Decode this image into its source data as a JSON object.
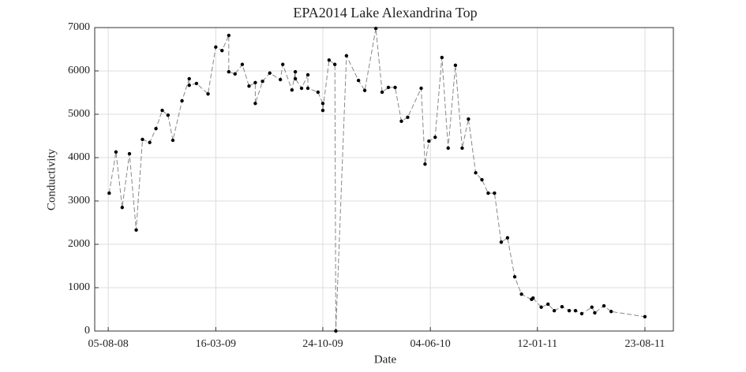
{
  "chart_data": {
    "type": "line",
    "title": "EPA2014 Lake Alexandrina Top",
    "xlabel": "Date",
    "ylabel": "Conductivity",
    "x": [
      "2008-08-07",
      "2008-08-21",
      "2008-09-03",
      "2008-09-18",
      "2008-10-02",
      "2008-10-15",
      "2008-10-30",
      "2008-11-12",
      "2008-11-25",
      "2008-12-07",
      "2008-12-17",
      "2009-01-05",
      "2009-01-20",
      "2009-01-20",
      "2009-02-04",
      "2009-02-28",
      "2009-03-16",
      "2009-03-29",
      "2009-04-12",
      "2009-04-12",
      "2009-04-25",
      "2009-05-10",
      "2009-05-24",
      "2009-06-06",
      "2009-06-06",
      "2009-06-21",
      "2009-07-06",
      "2009-07-28",
      "2009-08-02",
      "2009-08-21",
      "2009-08-28",
      "2009-08-28",
      "2009-09-10",
      "2009-09-23",
      "2009-09-23",
      "2009-10-14",
      "2009-10-24",
      "2009-10-24",
      "2009-11-06",
      "2009-11-18",
      "2009-11-20",
      "2009-12-12",
      "2010-01-06",
      "2010-01-19",
      "2010-02-11",
      "2010-02-24",
      "2010-03-09",
      "2010-03-23",
      "2010-04-05",
      "2010-04-18",
      "2010-05-16",
      "2010-05-24",
      "2010-06-01",
      "2010-06-14",
      "2010-06-28",
      "2010-07-11",
      "2010-07-26",
      "2010-08-09",
      "2010-08-22",
      "2010-09-06",
      "2010-09-19",
      "2010-10-02",
      "2010-10-15",
      "2010-10-29",
      "2010-11-11",
      "2010-11-26",
      "2010-12-10",
      "2010-12-31",
      "2011-01-03",
      "2011-01-20",
      "2011-02-03",
      "2011-02-16",
      "2011-03-04",
      "2011-03-19",
      "2011-04-01",
      "2011-04-14",
      "2011-05-05",
      "2011-05-11",
      "2011-05-30",
      "2011-06-14",
      "2011-08-23"
    ],
    "values": [
      3180,
      4130,
      2850,
      4090,
      2330,
      4420,
      4350,
      4670,
      5090,
      4980,
      4400,
      5310,
      5820,
      5670,
      5710,
      5470,
      6550,
      6470,
      6820,
      5980,
      5930,
      6150,
      5650,
      5730,
      5250,
      5760,
      5950,
      5800,
      6150,
      5560,
      5980,
      5820,
      5600,
      5910,
      5600,
      5510,
      5250,
      5090,
      6250,
      6150,
      0,
      6350,
      5780,
      5550,
      6980,
      5510,
      5620,
      5620,
      4840,
      4930,
      5600,
      3850,
      4380,
      4470,
      6310,
      4220,
      6130,
      4220,
      4890,
      3650,
      3490,
      3180,
      3180,
      2050,
      2150,
      1250,
      850,
      730,
      760,
      550,
      620,
      470,
      560,
      470,
      470,
      400,
      550,
      420,
      580,
      450,
      330
    ],
    "color": "#000000",
    "line_color": "#888888",
    "xlim": [
      "2008-07-08",
      "2011-10-21"
    ],
    "xticks": [
      {
        "value": "2008-08-05",
        "label": "05-08-08"
      },
      {
        "value": "2009-03-16",
        "label": "16-03-09"
      },
      {
        "value": "2009-10-24",
        "label": "24-10-09"
      },
      {
        "value": "2010-06-04",
        "label": "04-06-10"
      },
      {
        "value": "2011-01-12",
        "label": "12-01-11"
      },
      {
        "value": "2011-08-23",
        "label": "23-08-11"
      }
    ],
    "ylim": [
      0,
      7000
    ],
    "yticks": [
      0,
      1000,
      2000,
      3000,
      4000,
      5000,
      6000,
      7000
    ],
    "grid": true
  }
}
